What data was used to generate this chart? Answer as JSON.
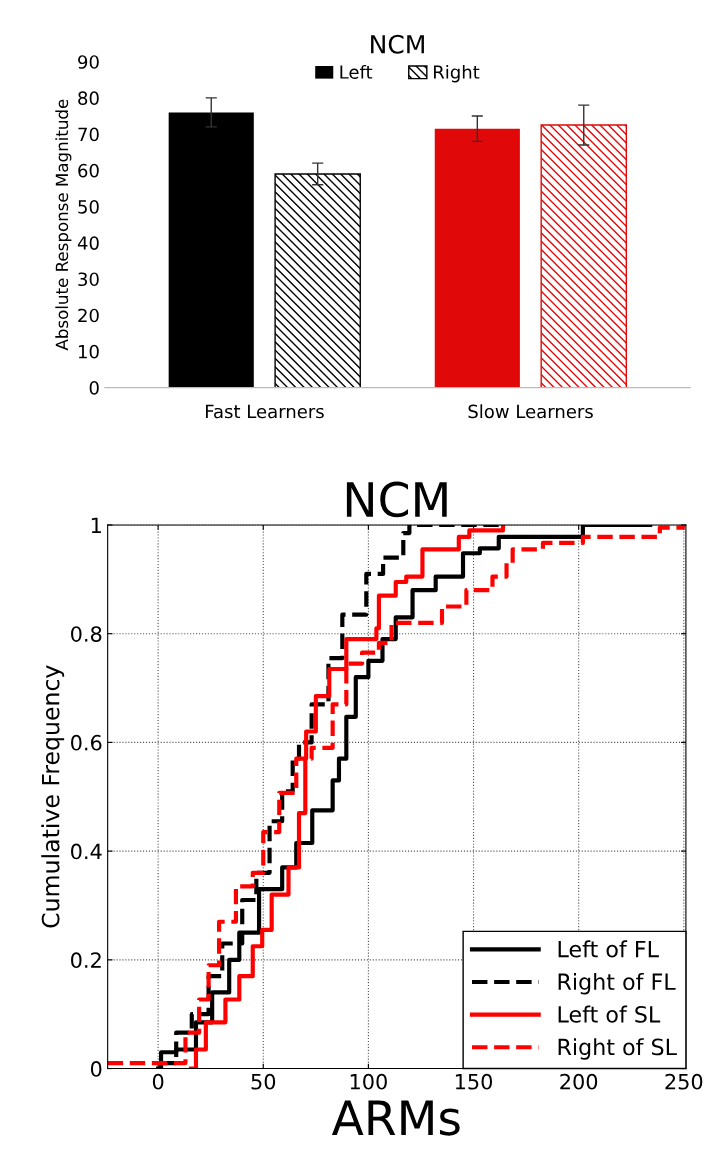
{
  "chart_data": [
    {
      "type": "bar",
      "title": "NCM",
      "ylabel": "Absolute Response Magnitude",
      "categories": [
        "Fast Learners",
        "Slow Learners"
      ],
      "series": [
        {
          "name": "Left",
          "color": "#000000",
          "colors": [
            "#000000",
            "#e00808"
          ],
          "values": [
            76,
            71.5
          ],
          "errors": [
            4,
            3.5
          ]
        },
        {
          "name": "Right",
          "color": "#000000",
          "colors": [
            "#000000",
            "#e00808"
          ],
          "values": [
            59,
            72.5
          ],
          "errors": [
            3,
            5.5
          ]
        }
      ],
      "ylim": [
        0,
        90
      ],
      "yticks": [
        0,
        10,
        20,
        30,
        40,
        50,
        60,
        70,
        80,
        90
      ],
      "legend": "top",
      "grid": false
    },
    {
      "type": "step",
      "title": "NCM",
      "xlabel": "ARMs",
      "ylabel": "Cumulative Frequency",
      "series": [
        {
          "name": "Left of FL",
          "color": "#000000",
          "line_style": "solid",
          "x": [
            0,
            1.4,
            8.6,
            18,
            25.7,
            33.8,
            38.6,
            48,
            59,
            65.7,
            73.3,
            83,
            86,
            89.5,
            94,
            100,
            106.7,
            113,
            121,
            132,
            145,
            153,
            162,
            202,
            234
          ],
          "values": [
            0,
            0.03,
            0.035,
            0.085,
            0.14,
            0.2,
            0.25,
            0.33,
            0.37,
            0.415,
            0.475,
            0.53,
            0.57,
            0.647,
            0.72,
            0.75,
            0.79,
            0.83,
            0.88,
            0.905,
            0.948,
            0.957,
            0.978,
            1,
            1
          ]
        },
        {
          "name": "Right of FL",
          "color": "#000000",
          "line_style": "dashed",
          "x": [
            1,
            8.6,
            16,
            24,
            30.5,
            40,
            46.7,
            53,
            59,
            64,
            67,
            73,
            81,
            87.6,
            99,
            107,
            116.6,
            119.5,
            162
          ],
          "values": [
            0.01,
            0.066,
            0.1,
            0.17,
            0.23,
            0.31,
            0.36,
            0.455,
            0.51,
            0.57,
            0.6,
            0.67,
            0.755,
            0.835,
            0.91,
            0.94,
            0.985,
            1,
            1
          ]
        },
        {
          "name": "Left of SL",
          "color": "#ff0000",
          "line_style": "solid",
          "x": [
            15.6,
            18,
            22.7,
            32,
            38.6,
            45,
            49.5,
            54,
            62,
            67,
            70,
            70.4,
            75,
            81.4,
            89.5,
            103.8,
            105,
            113,
            118,
            125.7,
            143,
            148,
            164
          ],
          "values": [
            0,
            0.035,
            0.085,
            0.127,
            0.17,
            0.225,
            0.255,
            0.32,
            0.37,
            0.47,
            0.57,
            0.62,
            0.685,
            0.735,
            0.79,
            0.81,
            0.87,
            0.895,
            0.905,
            0.955,
            0.978,
            0.99,
            1
          ]
        },
        {
          "name": "Right of SL",
          "color": "#ff0000",
          "line_style": "dashed",
          "x": [
            -24,
            8.6,
            13,
            19.5,
            24,
            29,
            37,
            45,
            50,
            57.6,
            65.7,
            73,
            83,
            89.5,
            97,
            105,
            111,
            122.6,
            135,
            146.6,
            159,
            165.7,
            168.6,
            183,
            202,
            238.6,
            249.5
          ],
          "values": [
            0.01,
            0.01,
            0.066,
            0.127,
            0.19,
            0.27,
            0.335,
            0.36,
            0.435,
            0.507,
            0.57,
            0.59,
            0.67,
            0.745,
            0.765,
            0.783,
            0.82,
            0.82,
            0.85,
            0.88,
            0.905,
            0.93,
            0.955,
            0.967,
            0.978,
            0.995,
            1
          ]
        }
      ],
      "xlim": [
        -24,
        251
      ],
      "xticks": [
        0,
        50,
        100,
        150,
        200,
        250
      ],
      "ylim": [
        0,
        1
      ],
      "yticks": [
        0,
        {
          "value": 0.2,
          "label": "0.2"
        },
        {
          "value": 0.4,
          "label": "0.4"
        },
        {
          "value": 0.6,
          "label": "0.6"
        },
        {
          "value": 0.8,
          "label": "0.8"
        },
        1
      ],
      "grid": true,
      "legend": "bottom right"
    }
  ]
}
